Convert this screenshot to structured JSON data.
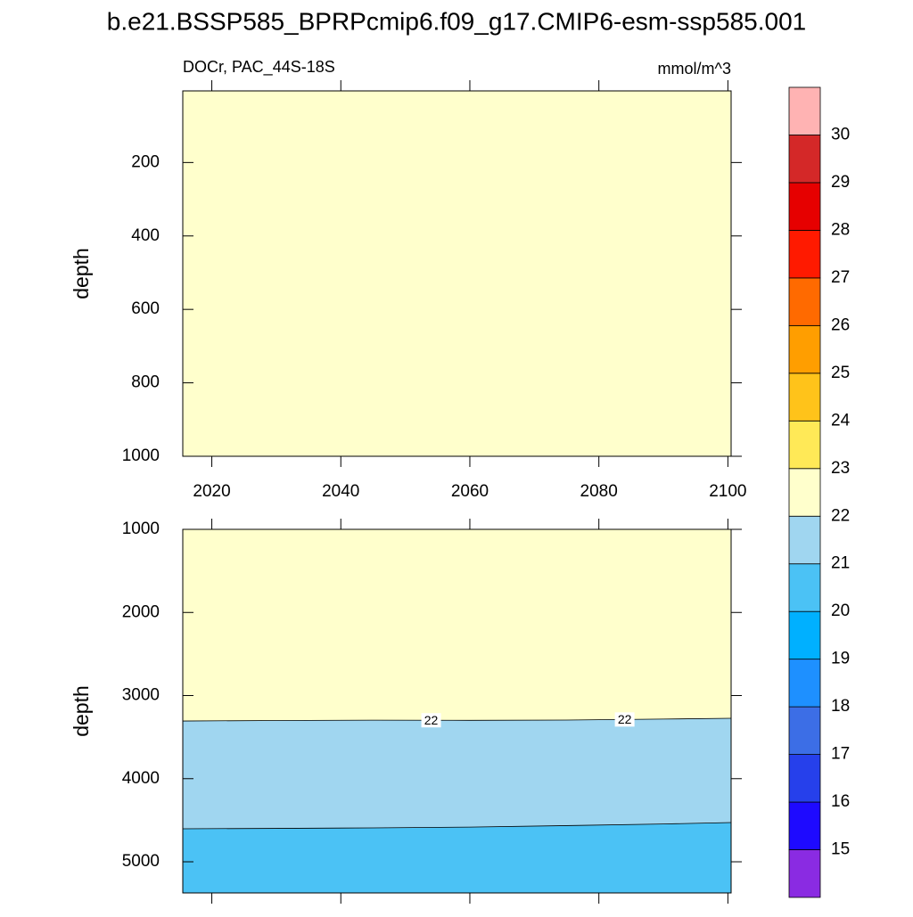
{
  "chart_data": [
    {
      "type": "contour",
      "title": "b.e21.BSSP585_BPRPcmip6.f09_g17.CMIP6-esm-ssp585.001",
      "subtitle": "DOCr, PAC_44S-18S",
      "units": "mmol/m^3",
      "ylabel": "depth",
      "xlim": [
        2015.5,
        2100.5
      ],
      "xticks": [
        2020,
        2040,
        2060,
        2080,
        2100
      ],
      "ylim": [
        5,
        1000
      ],
      "yticks": [
        200,
        400,
        600,
        800,
        1000
      ],
      "y_reversed": true,
      "contours": [],
      "fills": [
        "#ffffcc"
      ]
    },
    {
      "type": "contour",
      "ylabel": "depth",
      "xlim": [
        2015.5,
        2100.5
      ],
      "xticks": [
        2020,
        2040,
        2060,
        2080,
        2100
      ],
      "ylim": [
        1000,
        5375
      ],
      "yticks": [
        1000,
        2000,
        3000,
        4000,
        5000
      ],
      "y_reversed": true,
      "contours": [
        {
          "level": 22,
          "x": [
            2015.5,
            2030,
            2045,
            2060,
            2075,
            2090,
            2100.5
          ],
          "y": [
            3306,
            3300,
            3296,
            3298,
            3295,
            3283,
            3273
          ],
          "label_x": [
            2054,
            2084
          ]
        },
        {
          "level": 21,
          "x": [
            2015.5,
            2030,
            2045,
            2060,
            2075,
            2090,
            2100.5
          ],
          "y": [
            4603,
            4598,
            4592,
            4583,
            4565,
            4545,
            4528
          ],
          "label_x": []
        }
      ],
      "fills": [
        "#ffffcc",
        "#a0d6f0",
        "#4bc2f5"
      ]
    }
  ],
  "colorbar": {
    "levels": [
      15,
      16,
      17,
      18,
      19,
      20,
      21,
      22,
      23,
      24,
      25,
      26,
      27,
      28,
      29,
      30
    ],
    "colors": [
      "#8a2be2",
      "#1e0aff",
      "#2640eb",
      "#3c6ee6",
      "#1e90ff",
      "#00b0ff",
      "#4bc2f5",
      "#a0d6f0",
      "#ffffcc",
      "#ffe957",
      "#ffc31a",
      "#ff9e00",
      "#ff6a00",
      "#ff1a00",
      "#e60000",
      "#d42828",
      "#ffb3b3"
    ]
  }
}
